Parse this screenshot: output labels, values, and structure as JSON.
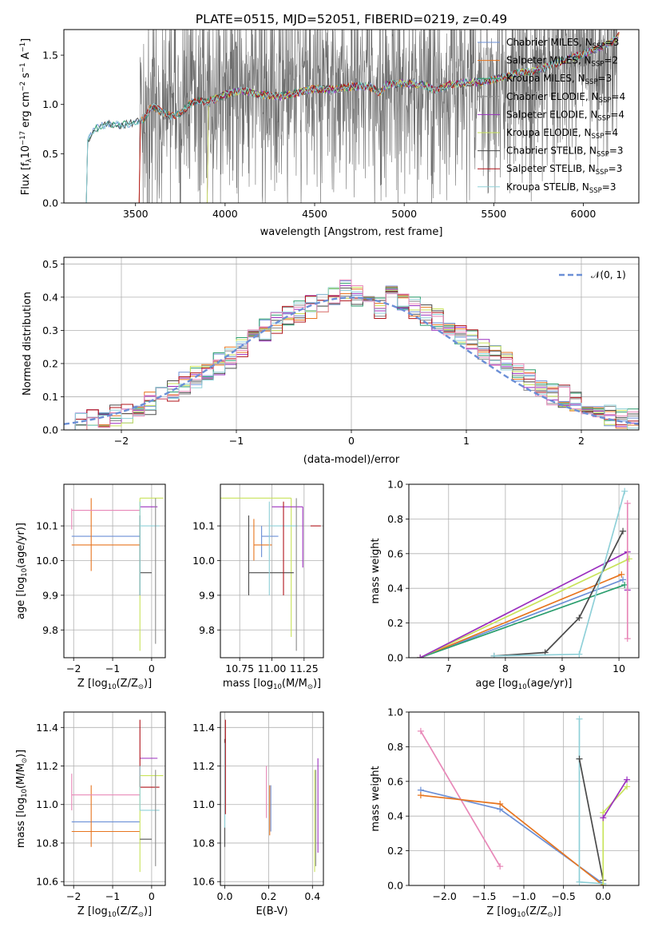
{
  "colors": {
    "Chabrier MILES": "#6b8fd6",
    "Salpeter MILES": "#e7751f",
    "Kroupa MILES": "#2a9e6e",
    "Chabrier ELODIE": "#8a8a8a",
    "Salpeter ELODIE": "#9b2fbf",
    "Kroupa ELODIE": "#c8e35a",
    "Chabrier STELIB": "#4a4a4a",
    "Salpeter STELIB": "#b0131a",
    "Kroupa STELIB": "#8fd0d8",
    "pink": "#e888b8",
    "normal": "#6b8fd6"
  },
  "legend_entries": [
    {
      "base": "Chabrier MILES, N",
      "sub": "SSP",
      "tail": "=3"
    },
    {
      "base": "Salpeter MILES, N",
      "sub": "SSP",
      "tail": "=2"
    },
    {
      "base": "Kroupa MILES, N",
      "sub": "SSP",
      "tail": "=3"
    },
    {
      "base": "Chabrier ELODIE, N",
      "sub": "SSP",
      "tail": "=4"
    },
    {
      "base": "Salpeter ELODIE, N",
      "sub": "SSP",
      "tail": "=4"
    },
    {
      "base": "Kroupa ELODIE, N",
      "sub": "SSP",
      "tail": "=4"
    },
    {
      "base": "Chabrier STELIB, N",
      "sub": "SSP",
      "tail": "=3"
    },
    {
      "base": "Salpeter STELIB, N",
      "sub": "SSP",
      "tail": "=3"
    },
    {
      "base": "Kroupa STELIB, N",
      "sub": "SSP",
      "tail": "=3"
    }
  ],
  "chart_data": [
    {
      "type": "line",
      "title": "PLATE=0515, MJD=52051, FIBERID=0219, z=0.49",
      "xlabel": "wavelength [Angstrom, rest frame]",
      "ylabel_parts": [
        "Flux [f",
        "λ",
        "10",
        "−17",
        " erg cm",
        "−2",
        " s",
        "−1",
        " A",
        "−1",
        "]"
      ],
      "xlim": [
        3100,
        6310
      ],
      "ylim": [
        0,
        1.76
      ],
      "xticks": [
        3500,
        4000,
        4500,
        5000,
        5500,
        6000
      ],
      "yticks": [
        0.0,
        0.5,
        1.0,
        1.5
      ],
      "continuum": [
        [
          3225,
          0
        ],
        [
          3230,
          0.62
        ],
        [
          3260,
          0.72
        ],
        [
          3300,
          0.78
        ],
        [
          3350,
          0.8
        ],
        [
          3400,
          0.79
        ],
        [
          3450,
          0.8
        ],
        [
          3500,
          0.82
        ],
        [
          3540,
          0.84
        ],
        [
          3580,
          0.95
        ],
        [
          3600,
          0.98
        ],
        [
          3650,
          0.92
        ],
        [
          3700,
          0.88
        ],
        [
          3760,
          0.92
        ],
        [
          3800,
          1.0
        ],
        [
          3850,
          1.05
        ],
        [
          3900,
          1.02
        ],
        [
          3950,
          1.06
        ],
        [
          4000,
          1.1
        ],
        [
          4100,
          1.14
        ],
        [
          4200,
          1.1
        ],
        [
          4300,
          1.08
        ],
        [
          4400,
          1.12
        ],
        [
          4500,
          1.16
        ],
        [
          4600,
          1.15
        ],
        [
          4700,
          1.18
        ],
        [
          4800,
          1.19
        ],
        [
          4861,
          1.12
        ],
        [
          4900,
          1.2
        ],
        [
          5000,
          1.22
        ],
        [
          5100,
          1.2
        ],
        [
          5175,
          1.14
        ],
        [
          5250,
          1.2
        ],
        [
          5350,
          1.22
        ],
        [
          5450,
          1.23
        ],
        [
          5550,
          1.28
        ],
        [
          5650,
          1.32
        ],
        [
          5750,
          1.35
        ],
        [
          5850,
          1.42
        ],
        [
          5950,
          1.48
        ],
        [
          6050,
          1.55
        ],
        [
          6150,
          1.62
        ],
        [
          6200,
          1.7
        ]
      ],
      "data_start": 3520,
      "data_end": 6190
    },
    {
      "type": "bar",
      "xlabel": "(data-model)/error",
      "ylabel": "Normed distribution",
      "xlim": [
        -2.5,
        2.5
      ],
      "ylim": [
        0,
        0.52
      ],
      "xticks": [
        -2,
        -1,
        0,
        1,
        2
      ],
      "yticks": [
        0.0,
        0.1,
        0.2,
        0.3,
        0.4,
        0.5
      ],
      "bin_edges": [
        -2.5,
        -2.4,
        -2.3,
        -2.2,
        -2.1,
        -2.0,
        -1.9,
        -1.8,
        -1.7,
        -1.6,
        -1.5,
        -1.4,
        -1.3,
        -1.2,
        -1.1,
        -1.0,
        -0.9,
        -0.8,
        -0.7,
        -0.6,
        -0.5,
        -0.4,
        -0.3,
        -0.2,
        -0.1,
        0.0,
        0.1,
        0.2,
        0.3,
        0.4,
        0.5,
        0.6,
        0.7,
        0.8,
        0.9,
        1.0,
        1.1,
        1.2,
        1.3,
        1.4,
        1.5,
        1.6,
        1.7,
        1.8,
        1.9,
        2.0,
        2.1,
        2.2,
        2.3,
        2.4,
        2.5
      ],
      "values": [
        0.02,
        0.02,
        0.03,
        0.03,
        0.04,
        0.05,
        0.06,
        0.08,
        0.1,
        0.12,
        0.14,
        0.16,
        0.17,
        0.2,
        0.22,
        0.25,
        0.27,
        0.3,
        0.32,
        0.34,
        0.36,
        0.37,
        0.38,
        0.4,
        0.42,
        0.4,
        0.38,
        0.37,
        0.4,
        0.38,
        0.37,
        0.35,
        0.33,
        0.31,
        0.29,
        0.27,
        0.24,
        0.22,
        0.2,
        0.18,
        0.15,
        0.13,
        0.11,
        0.1,
        0.08,
        0.07,
        0.05,
        0.04,
        0.03,
        0.03
      ],
      "legend_label": "𝒩(0, 1)"
    },
    {
      "type": "scatter",
      "xlabel_parts": [
        "Z [log",
        "10",
        "(Z/Z",
        "⊙",
        ")]"
      ],
      "ylabel_parts": [
        "age  [log",
        "10",
        "(age/yr)]"
      ],
      "xlim": [
        -2.25,
        0.35
      ],
      "ylim": [
        9.72,
        10.22
      ],
      "xticks": [
        -2,
        -1,
        0
      ],
      "yticks": [
        9.8,
        9.9,
        10.0,
        10.1
      ],
      "points": [
        {
          "series": "Chabrier MILES",
          "x": -0.3,
          "y": 10.07,
          "xl": -2.05,
          "xr": -0.3,
          "yl": 10.07,
          "yh": 10.07
        },
        {
          "series": "Salpeter MILES",
          "x": -1.55,
          "y": 10.045,
          "xl": -2.05,
          "xr": -0.3,
          "yl": 9.97,
          "yh": 10.18
        },
        {
          "series": "pink",
          "x": -2.05,
          "y": 10.145,
          "xl": -2.05,
          "xr": -0.3,
          "yl": 10.09,
          "yh": 10.15
        },
        {
          "series": "Salpeter ELODIE",
          "x": -0.3,
          "y": 10.155,
          "xl": -0.3,
          "xr": 0.15,
          "yl": 10.155,
          "yh": 10.155
        },
        {
          "series": "Kroupa ELODIE",
          "x": -0.3,
          "y": 10.18,
          "xl": -0.3,
          "xr": 0.3,
          "yl": 9.74,
          "yh": 10.18
        },
        {
          "series": "Chabrier STELIB",
          "x": -0.3,
          "y": 9.965,
          "xl": -0.3,
          "xr": 0.0,
          "yl": 9.9,
          "yh": 10.13
        },
        {
          "series": "Kroupa STELIB",
          "x": -0.3,
          "y": 10.1,
          "xl": -0.3,
          "xr": 0.2,
          "yl": 9.9,
          "yh": 10.17
        },
        {
          "series": "Chabrier ELODIE",
          "x": 0.1,
          "y": 10.1,
          "xl": 0.1,
          "xr": 0.1,
          "yl": 9.76,
          "yh": 10.18
        }
      ]
    },
    {
      "type": "scatter",
      "xlabel_parts": [
        "mass [log",
        "10",
        "(M/M",
        "⊙",
        ")]"
      ],
      "xlim": [
        10.6,
        11.4
      ],
      "ylim": [
        9.72,
        10.22
      ],
      "xticks": [
        10.75,
        11.0,
        11.25
      ],
      "xtick_labels": [
        "10.75",
        "11.00",
        "11.25"
      ],
      "yticks": [
        9.8,
        9.9,
        10.0,
        10.1
      ],
      "points": [
        {
          "series": "Chabrier MILES",
          "x": 10.92,
          "y": 10.07,
          "xl": 10.92,
          "xr": 11.05,
          "yl": 10.01,
          "yh": 10.1
        },
        {
          "series": "Salpeter MILES",
          "x": 10.86,
          "y": 10.045,
          "xl": 10.86,
          "xr": 11.0,
          "yl": 10.0,
          "yh": 10.12
        },
        {
          "series": "Kroupa ELODIE",
          "x": 11.15,
          "y": 10.18,
          "xl": 10.6,
          "xr": 11.15,
          "yl": 9.78,
          "yh": 10.18
        },
        {
          "series": "Salpeter ELODIE",
          "x": 11.24,
          "y": 10.155,
          "xl": 11.0,
          "xr": 11.24,
          "yl": 9.98,
          "yh": 10.155
        },
        {
          "series": "Chabrier STELIB",
          "x": 10.82,
          "y": 9.965,
          "xl": 10.82,
          "xr": 11.17,
          "yl": 9.9,
          "yh": 10.13
        },
        {
          "series": "Kroupa STELIB",
          "x": 10.98,
          "y": 10.1,
          "xl": 10.98,
          "xr": 11.2,
          "yl": 9.9,
          "yh": 10.17
        },
        {
          "series": "Salpeter STELIB",
          "x": 11.09,
          "y": 10.1,
          "xl": 11.3,
          "xr": 11.38,
          "yl": 9.9,
          "yh": 10.17
        },
        {
          "series": "Chabrier ELODIE",
          "x": 11.19,
          "y": 10.1,
          "xl": 11.19,
          "xr": 11.19,
          "yl": 9.74,
          "yh": 10.18
        }
      ]
    },
    {
      "type": "line",
      "xlabel_parts": [
        "age  [log",
        "10",
        "(age/yr)]"
      ],
      "ylabel": "mass weight",
      "xlim": [
        6.3,
        10.35
      ],
      "ylim": [
        0,
        1.0
      ],
      "xticks": [
        7,
        8,
        9,
        10
      ],
      "yticks": [
        0.0,
        0.2,
        0.4,
        0.6,
        0.8,
        1.0
      ],
      "series": [
        {
          "name": "Chabrier MILES",
          "points": [
            [
              6.5,
              0.0
            ],
            [
              10.07,
              0.45
            ]
          ]
        },
        {
          "name": "Salpeter MILES",
          "points": [
            [
              6.5,
              0.0
            ],
            [
              10.045,
              0.48
            ]
          ]
        },
        {
          "name": "Kroupa MILES",
          "points": [
            [
              6.5,
              0.0
            ],
            [
              10.1,
              0.42
            ]
          ]
        },
        {
          "name": "Kroupa ELODIE",
          "points": [
            [
              6.5,
              0.0
            ],
            [
              10.18,
              0.57
            ]
          ]
        },
        {
          "name": "Salpeter ELODIE",
          "points": [
            [
              6.5,
              0.0
            ],
            [
              10.15,
              0.61
            ],
            [
              10.15,
              0.39
            ]
          ]
        },
        {
          "name": "Chabrier STELIB",
          "points": [
            [
              7.8,
              0.01
            ],
            [
              8.7,
              0.03
            ],
            [
              9.3,
              0.23
            ],
            [
              10.07,
              0.73
            ]
          ]
        },
        {
          "name": "Kroupa STELIB",
          "points": [
            [
              7.8,
              0.01
            ],
            [
              9.3,
              0.02
            ],
            [
              10.1,
              0.96
            ]
          ]
        },
        {
          "name": "pink",
          "points": [
            [
              10.15,
              0.11
            ],
            [
              10.15,
              0.89
            ]
          ]
        }
      ]
    },
    {
      "type": "scatter",
      "xlabel_parts": [
        "Z [log",
        "10",
        "(Z/Z",
        "⊙",
        ")]"
      ],
      "ylabel_parts": [
        "mass [log",
        "10",
        "(M/M",
        "⊙",
        ")]"
      ],
      "xlim": [
        -2.25,
        0.35
      ],
      "ylim": [
        10.58,
        11.48
      ],
      "xticks": [
        -2,
        -1,
        0
      ],
      "yticks": [
        10.6,
        10.8,
        11.0,
        11.2,
        11.4
      ],
      "points": [
        {
          "series": "Chabrier MILES",
          "x": -0.3,
          "y": 10.91,
          "xl": -2.05,
          "xr": -0.3,
          "yl": 10.91,
          "yh": 10.91
        },
        {
          "series": "Salpeter MILES",
          "x": -1.55,
          "y": 10.86,
          "xl": -2.05,
          "xr": -0.3,
          "yl": 10.78,
          "yh": 11.1
        },
        {
          "series": "pink",
          "x": -2.05,
          "y": 11.05,
          "xl": -2.05,
          "xr": -0.3,
          "yl": 10.97,
          "yh": 11.16
        },
        {
          "series": "Salpeter ELODIE",
          "x": -0.3,
          "y": 11.24,
          "xl": -0.3,
          "xr": 0.15,
          "yl": 11.24,
          "yh": 11.24
        },
        {
          "series": "Kroupa ELODIE",
          "x": -0.3,
          "y": 11.15,
          "xl": -0.3,
          "xr": 0.3,
          "yl": 10.65,
          "yh": 11.15
        },
        {
          "series": "Chabrier STELIB",
          "x": -0.3,
          "y": 10.82,
          "xl": -0.3,
          "xr": 0.0,
          "yl": 10.82,
          "yh": 10.82
        },
        {
          "series": "Salpeter STELIB",
          "x": -0.3,
          "y": 11.09,
          "xl": -0.3,
          "xr": 0.2,
          "yl": 11.09,
          "yh": 11.44
        },
        {
          "series": "Kroupa STELIB",
          "x": -0.3,
          "y": 10.97,
          "xl": -0.3,
          "xr": 0.2,
          "yl": 10.97,
          "yh": 11.2
        },
        {
          "series": "Chabrier ELODIE",
          "x": 0.1,
          "y": 11.18,
          "xl": 0.1,
          "xr": 0.1,
          "yl": 10.68,
          "yh": 11.18
        }
      ]
    },
    {
      "type": "scatter",
      "xlabel": "E(B-V)",
      "xlim": [
        -0.02,
        0.45
      ],
      "ylim": [
        10.58,
        11.48
      ],
      "xticks": [
        0.0,
        0.2,
        0.4
      ],
      "yticks": [
        10.6,
        10.8,
        11.0,
        11.2,
        11.4
      ],
      "points": [
        {
          "series": "Chabrier STELIB",
          "x": 0.0,
          "y": 11.1,
          "yl": 10.78,
          "yh": 11.34
        },
        {
          "series": "Kroupa STELIB",
          "x": 0.0,
          "y": 11.1,
          "yl": 10.88,
          "yh": 11.32
        },
        {
          "series": "Salpeter STELIB",
          "x": 0.003,
          "y": 11.1,
          "yl": 10.95,
          "yh": 11.44
        },
        {
          "series": "pink",
          "x": 0.19,
          "y": 11.05,
          "yl": 10.93,
          "yh": 11.2
        },
        {
          "series": "Salpeter MILES",
          "x": 0.205,
          "y": 10.95,
          "yl": 10.84,
          "yh": 11.1
        },
        {
          "series": "Chabrier MILES",
          "x": 0.21,
          "y": 10.95,
          "yl": 10.86,
          "yh": 11.1
        },
        {
          "series": "Kroupa ELODIE",
          "x": 0.41,
          "y": 11.0,
          "yl": 10.65,
          "yh": 11.18
        },
        {
          "series": "Salpeter ELODIE",
          "x": 0.425,
          "y": 11.0,
          "yl": 10.75,
          "yh": 11.24
        },
        {
          "series": "Chabrier ELODIE",
          "x": 0.415,
          "y": 11.0,
          "yl": 10.68,
          "yh": 11.18
        }
      ]
    },
    {
      "type": "line",
      "xlabel_parts": [
        "Z [log",
        "10",
        "(Z/Z",
        "⊙",
        ")]"
      ],
      "ylabel": "mass weight",
      "xlim": [
        -2.45,
        0.45
      ],
      "ylim": [
        0,
        1.0
      ],
      "xticks": [
        -2.0,
        -1.5,
        -1.0,
        -0.5,
        0.0
      ],
      "xtick_labels": [
        "−2.0",
        "−1.5",
        "−1.0",
        "−0.5",
        "0.0"
      ],
      "yticks": [
        0.0,
        0.2,
        0.4,
        0.6,
        0.8,
        1.0
      ],
      "series": [
        {
          "name": "pink",
          "points": [
            [
              -2.3,
              0.89
            ],
            [
              -1.3,
              0.11
            ]
          ]
        },
        {
          "name": "Chabrier MILES",
          "points": [
            [
              -2.3,
              0.55
            ],
            [
              -1.3,
              0.44
            ],
            [
              0.0,
              0.01
            ]
          ]
        },
        {
          "name": "Salpeter MILES",
          "points": [
            [
              -2.3,
              0.52
            ],
            [
              -1.3,
              0.47
            ],
            [
              0.0,
              0.0
            ]
          ]
        },
        {
          "name": "Kroupa STELIB",
          "points": [
            [
              -0.3,
              0.96
            ],
            [
              -0.3,
              0.02
            ],
            [
              0.0,
              0.01
            ]
          ]
        },
        {
          "name": "Chabrier STELIB",
          "points": [
            [
              -0.3,
              0.73
            ],
            [
              0.0,
              0.03
            ]
          ]
        },
        {
          "name": "Kroupa ELODIE",
          "points": [
            [
              0.0,
              0.0
            ],
            [
              0.0,
              0.42
            ],
            [
              0.3,
              0.57
            ]
          ]
        },
        {
          "name": "Salpeter ELODIE",
          "points": [
            [
              0.0,
              0.39
            ],
            [
              0.3,
              0.61
            ]
          ]
        }
      ]
    }
  ]
}
